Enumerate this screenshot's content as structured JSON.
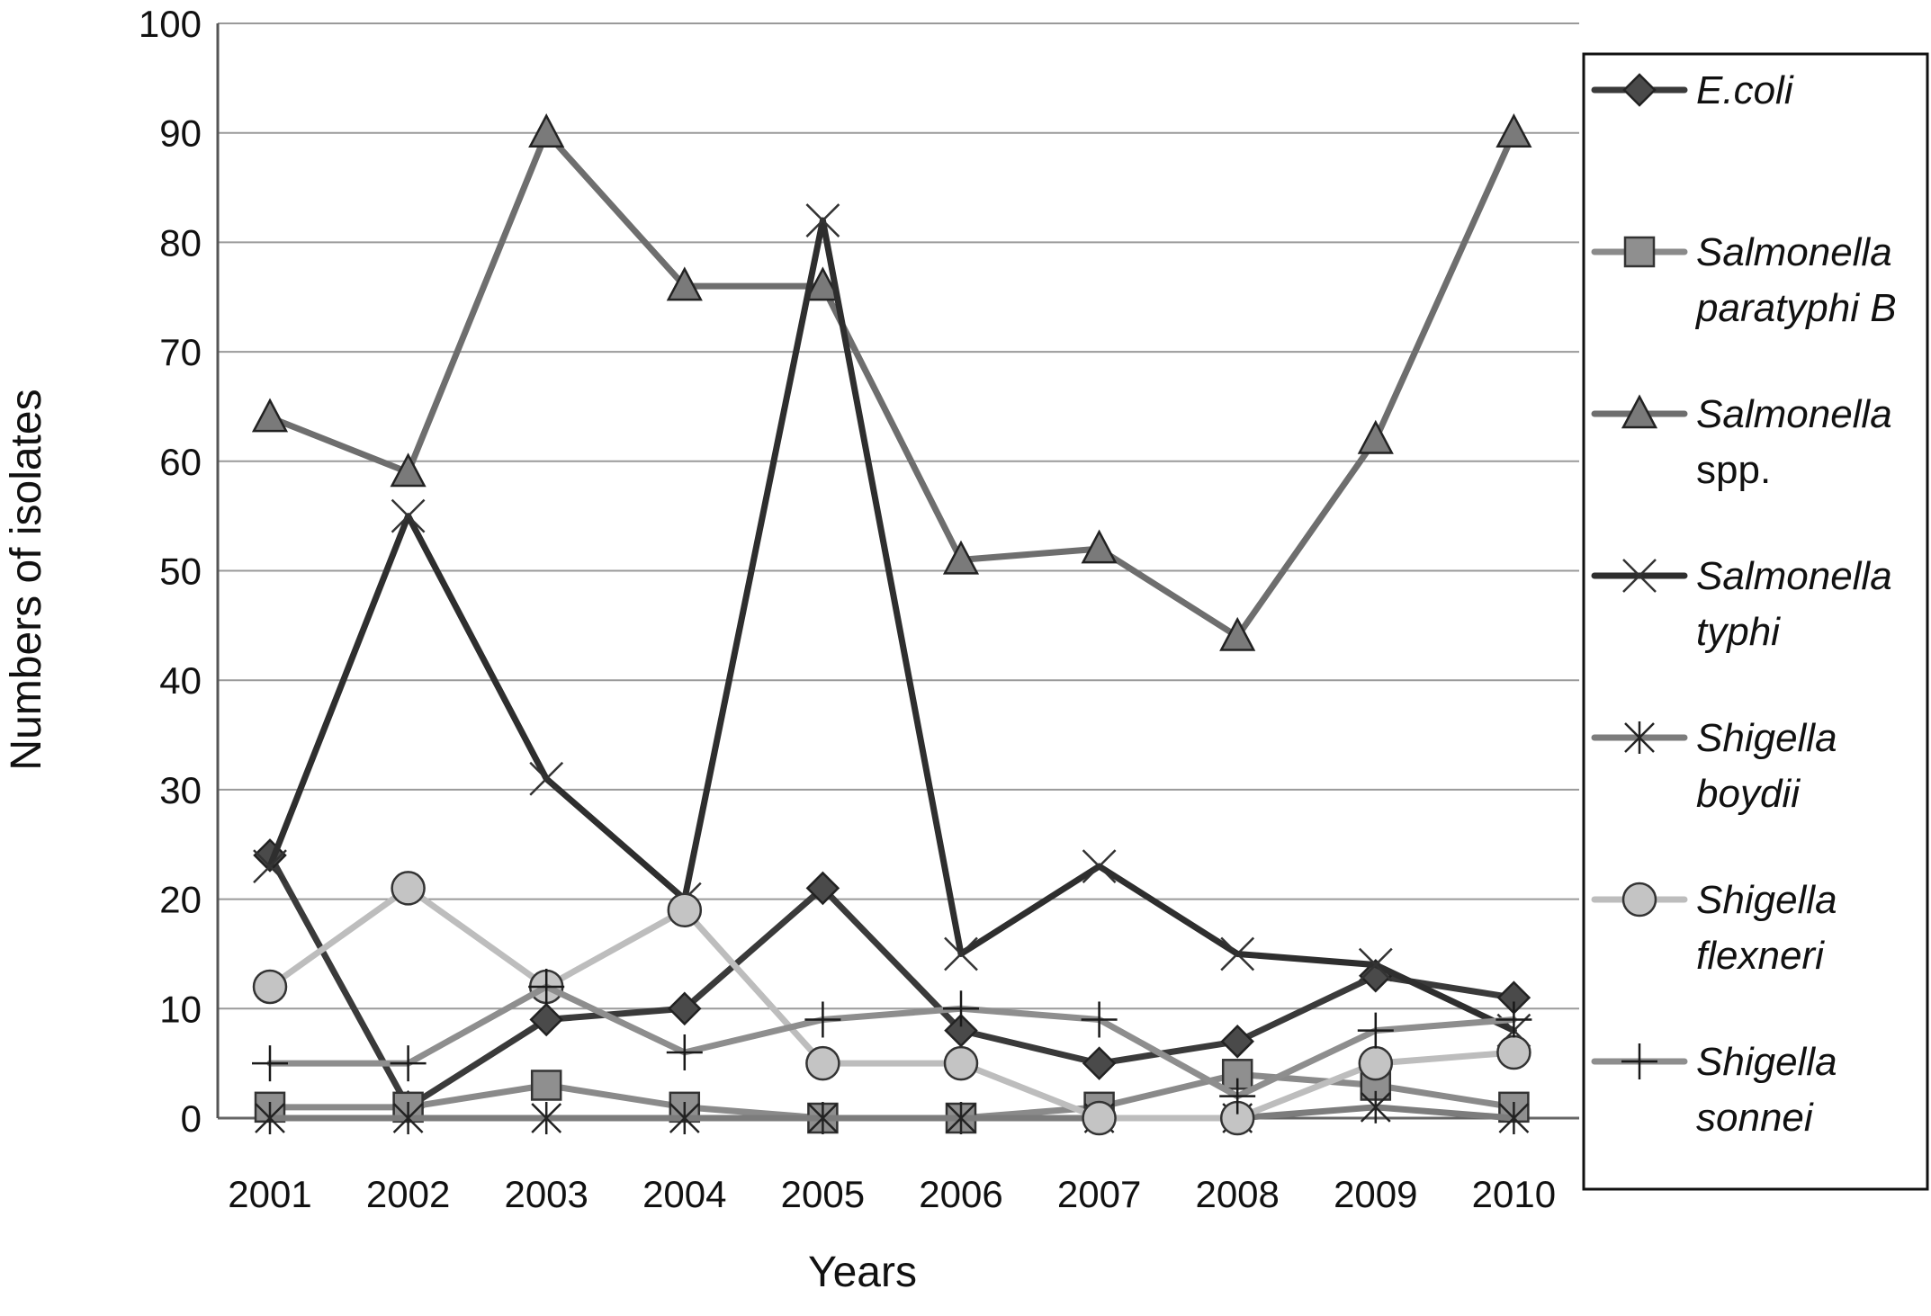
{
  "chart_data": {
    "type": "line",
    "title": "",
    "xlabel": "Years",
    "ylabel": "Numbers of isolates",
    "x": [
      "2001",
      "2002",
      "2003",
      "2004",
      "2005",
      "2006",
      "2007",
      "2008",
      "2009",
      "2010"
    ],
    "ylim": [
      0,
      100
    ],
    "yticks": [
      "0",
      "10",
      "20",
      "30",
      "40",
      "50",
      "60",
      "70",
      "80",
      "90",
      "100"
    ],
    "grid": "horizontal",
    "legend_position": "right",
    "series": [
      {
        "name": "E.coli",
        "label_lines": [
          "E.coli"
        ],
        "label_italic": [
          true
        ],
        "marker": "diamond",
        "color": "#3a3a3a",
        "marker_fill": "#4a4a4a",
        "values": [
          24,
          1,
          9,
          10,
          21,
          8,
          5,
          7,
          13,
          11
        ]
      },
      {
        "name": "Salmonella paratyphi B",
        "label_lines": [
          "Salmonella",
          "paratyphi B"
        ],
        "label_italic": [
          true,
          true
        ],
        "marker": "square",
        "color": "#8a8a8a",
        "marker_fill": "#8f8f8f",
        "values": [
          1,
          1,
          3,
          1,
          0,
          0,
          1,
          4,
          3,
          1
        ]
      },
      {
        "name": "Salmonella spp.",
        "label_lines": [
          "Salmonella",
          "spp."
        ],
        "label_italic": [
          true,
          false
        ],
        "marker": "triangle",
        "color": "#6e6e6e",
        "marker_fill": "#7a7a7a",
        "values": [
          64,
          59,
          90,
          76,
          76,
          51,
          52,
          44,
          62,
          90
        ]
      },
      {
        "name": "Salmonella typhi",
        "label_lines": [
          "Salmonella",
          "typhi"
        ],
        "label_italic": [
          true,
          true
        ],
        "marker": "x",
        "color": "#2e2e2e",
        "marker_fill": "#2e2e2e",
        "values": [
          23,
          55,
          31,
          20,
          82,
          15,
          23,
          15,
          14,
          8
        ]
      },
      {
        "name": "Shigella boydii",
        "label_lines": [
          "Shigella",
          "boydii"
        ],
        "label_italic": [
          true,
          true
        ],
        "marker": "star",
        "color": "#7c7c7c",
        "marker_fill": "#7c7c7c",
        "values": [
          0,
          0,
          0,
          0,
          0,
          0,
          0,
          0,
          1,
          0
        ]
      },
      {
        "name": "Shigella flexneri",
        "label_lines": [
          "Shigella",
          "flexneri"
        ],
        "label_italic": [
          true,
          true
        ],
        "marker": "circle",
        "color": "#bdbdbd",
        "marker_fill": "#c4c4c4",
        "values": [
          12,
          21,
          12,
          19,
          5,
          5,
          0,
          0,
          5,
          6
        ]
      },
      {
        "name": "Shigella sonnei",
        "label_lines": [
          "Shigella",
          "sonnei"
        ],
        "label_italic": [
          true,
          true
        ],
        "marker": "plus",
        "color": "#8e8e8e",
        "marker_fill": "#1a1a1a",
        "values": [
          5,
          5,
          12,
          6,
          9,
          10,
          9,
          2,
          8,
          9
        ]
      }
    ]
  }
}
